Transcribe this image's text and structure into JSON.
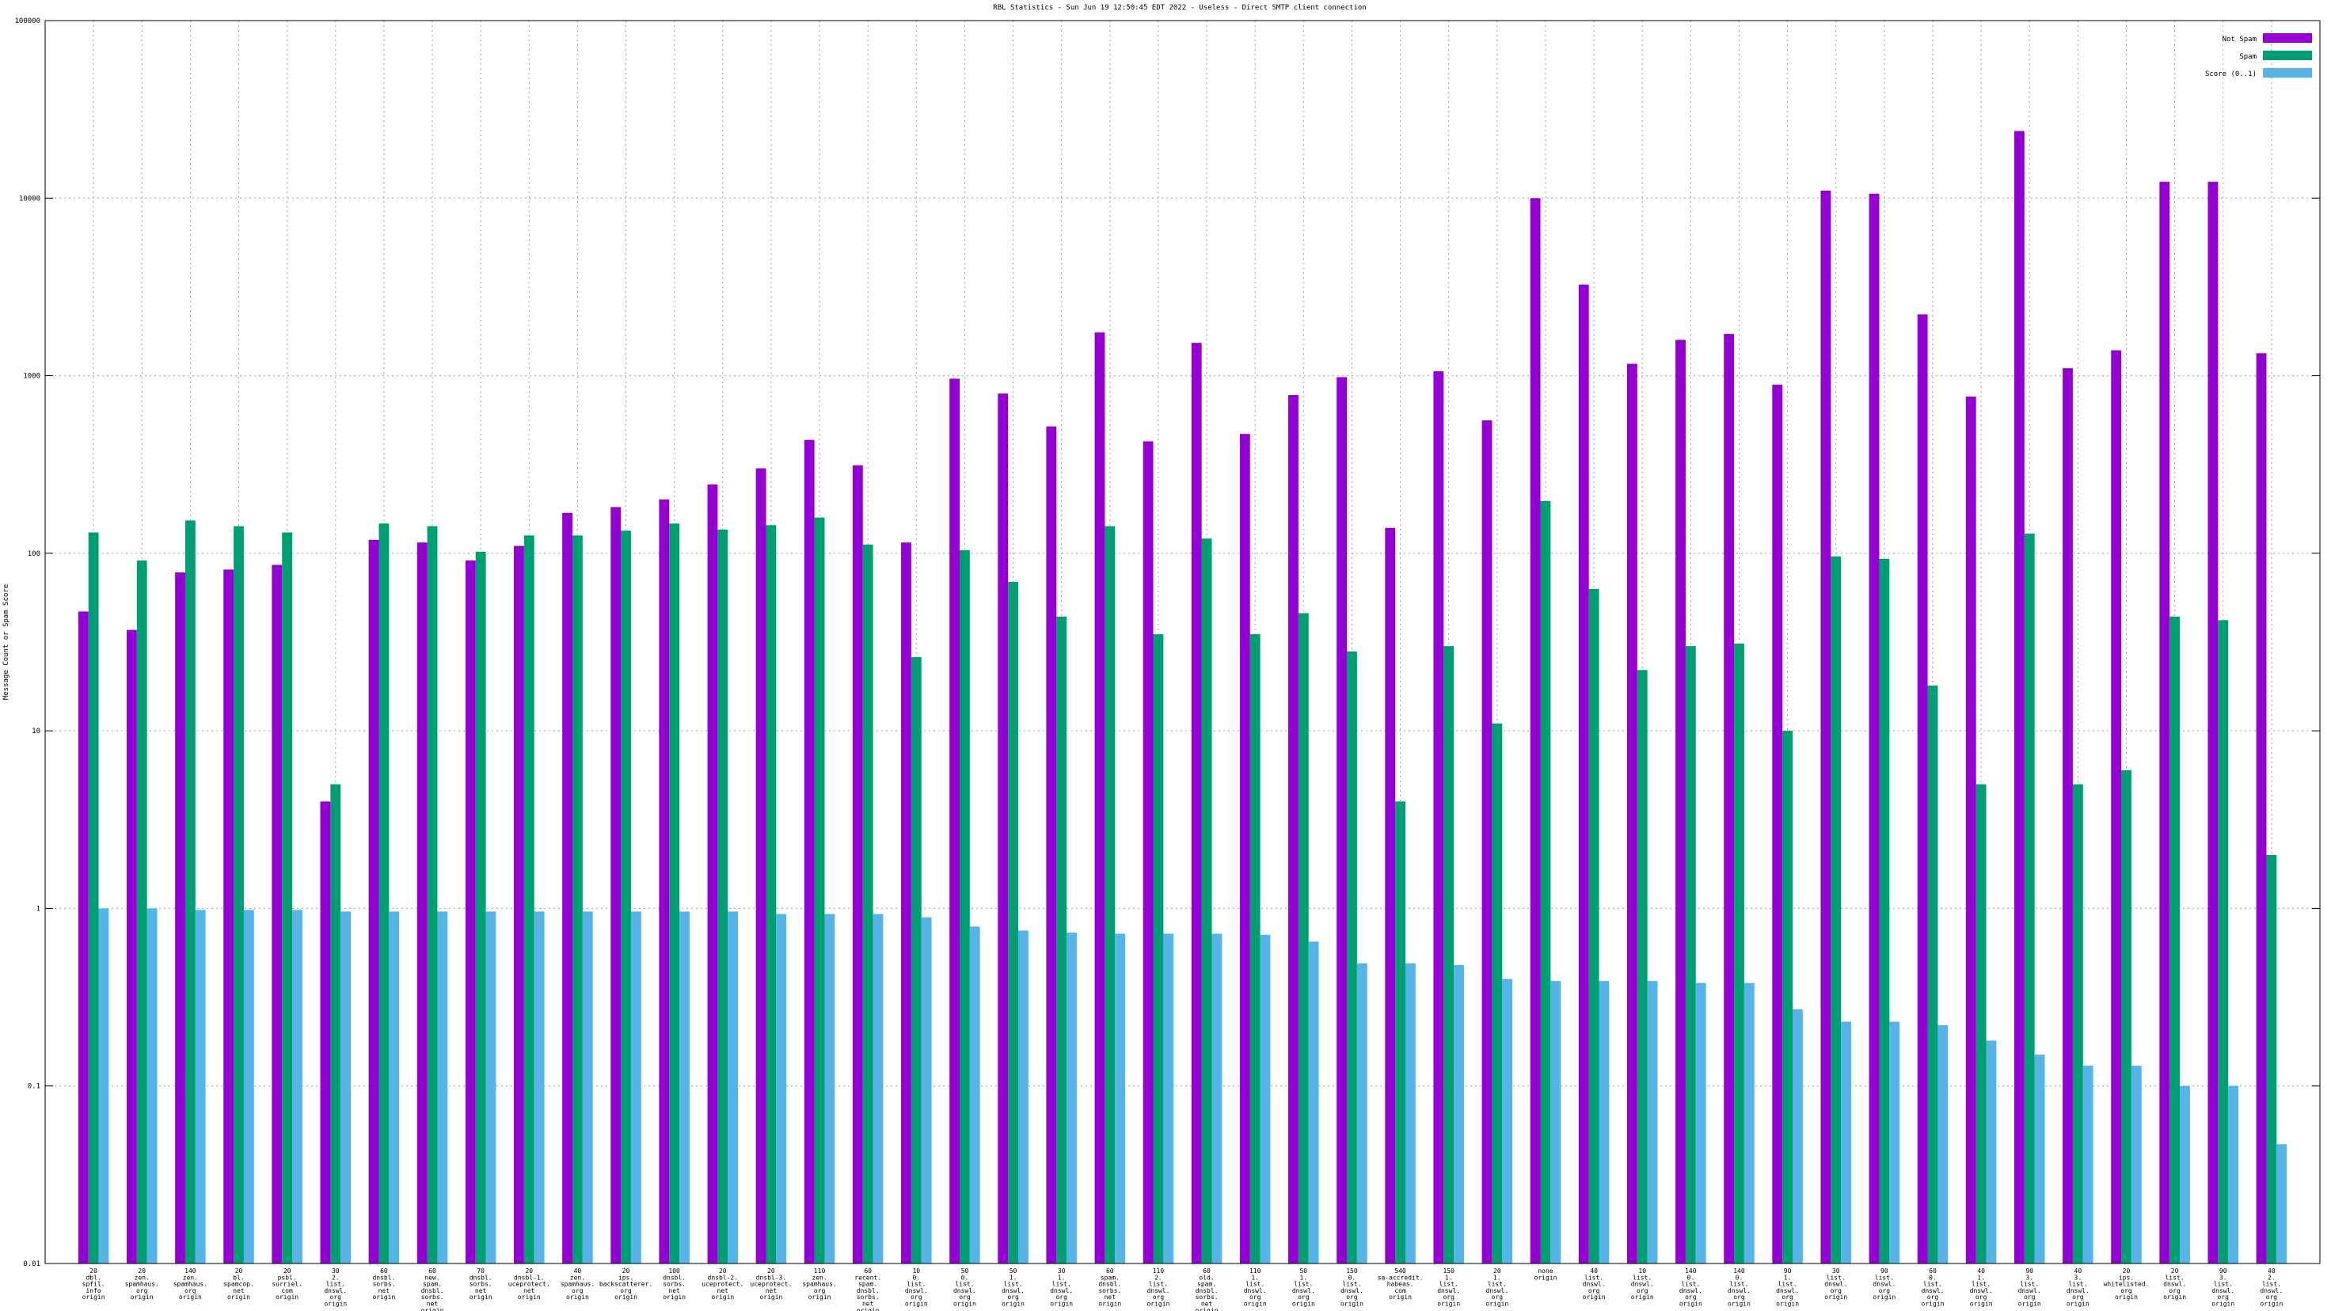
{
  "chart_data": {
    "type": "bar",
    "title": "RBL Statistics - Sun Jun 19 12:50:45 EDT 2022 - Useless - Direct SMTP client connection",
    "y_label": "Message Count or Spam Score",
    "log_scale": true,
    "grid": true,
    "legend_position": "top-right",
    "ylim": [
      0.01,
      100000
    ],
    "yticks": [
      0.01,
      0.1,
      1,
      10,
      100,
      1000,
      10000,
      100000
    ],
    "categories": [
      [
        "20",
        "dbl.",
        "spfil.",
        "info",
        "origin"
      ],
      [
        "20",
        "zen.",
        "spamhaus.",
        "org",
        "origin"
      ],
      [
        "140",
        "zen.",
        "spamhaus.",
        "org",
        "origin"
      ],
      [
        "20",
        "bl.",
        "spamcop.",
        "net",
        "origin"
      ],
      [
        "20",
        "psbl.",
        "surriel.",
        "com",
        "origin"
      ],
      [
        "30",
        "2.",
        "list.",
        "dnswl.",
        "org",
        "origin"
      ],
      [
        "60",
        "dnsbl.",
        "sorbs.",
        "net",
        "origin"
      ],
      [
        "60",
        "new.",
        "spam.",
        "dnsbl.",
        "sorbs.",
        "net",
        "origin"
      ],
      [
        "70",
        "dnsbl.",
        "sorbs.",
        "net",
        "origin"
      ],
      [
        "20",
        "dnsbl-1.",
        "uceprotect.",
        "net",
        "origin"
      ],
      [
        "40",
        "zen.",
        "spamhaus.",
        "org",
        "origin"
      ],
      [
        "20",
        "ips.",
        "backscatterer.",
        "org",
        "origin"
      ],
      [
        "100",
        "dnsbl.",
        "sorbs.",
        "net",
        "origin"
      ],
      [
        "20",
        "dnsbl-2.",
        "uceprotect.",
        "net",
        "origin"
      ],
      [
        "20",
        "dnsbl-3.",
        "uceprotect.",
        "net",
        "origin"
      ],
      [
        "110",
        "zen.",
        "spamhaus.",
        "org",
        "origin"
      ],
      [
        "60",
        "recent.",
        "spam.",
        "dnsbl.",
        "sorbs.",
        "net",
        "origin"
      ],
      [
        "10",
        "0.",
        "list.",
        "dnswl.",
        "org",
        "origin"
      ],
      [
        "50",
        "0.",
        "list.",
        "dnswl.",
        "org",
        "origin"
      ],
      [
        "50",
        "1.",
        "list.",
        "dnswl.",
        "org",
        "origin"
      ],
      [
        "30",
        "1.",
        "list.",
        "dnswl.",
        "org",
        "origin"
      ],
      [
        "60",
        "spam.",
        "dnsbl.",
        "sorbs.",
        "net",
        "origin"
      ],
      [
        "110",
        "2.",
        "list.",
        "dnswl.",
        "org",
        "origin"
      ],
      [
        "60",
        "old.",
        "spam.",
        "dnsbl.",
        "sorbs.",
        "net",
        "origin"
      ],
      [
        "110",
        "1.",
        "list.",
        "dnswl.",
        "org",
        "origin"
      ],
      [
        "50",
        "1.",
        "list.",
        "dnswl.",
        "org",
        "origin"
      ],
      [
        "150",
        "0.",
        "list.",
        "dnswl.",
        "org",
        "origin"
      ],
      [
        "540",
        "sa-accredit.",
        "habeas.",
        "com",
        "origin"
      ],
      [
        "150",
        "1.",
        "list.",
        "dnswl.",
        "org",
        "origin"
      ],
      [
        "20",
        "1.",
        "list.",
        "dnswl.",
        "org",
        "origin"
      ],
      [
        "none",
        "origin"
      ],
      [
        "40",
        "list.",
        "dnswl.",
        "org",
        "origin"
      ],
      [
        "10",
        "list.",
        "dnswl.",
        "org",
        "origin"
      ],
      [
        "140",
        "0.",
        "list.",
        "dnswl.",
        "org",
        "origin"
      ],
      [
        "140",
        "0.",
        "list.",
        "dnswl.",
        "org",
        "origin"
      ],
      [
        "90",
        "1.",
        "list.",
        "dnswl.",
        "org",
        "origin"
      ],
      [
        "30",
        "list.",
        "dnswl.",
        "org",
        "origin"
      ],
      [
        "90",
        "list.",
        "dnswl.",
        "org",
        "origin"
      ],
      [
        "60",
        "0.",
        "list.",
        "dnswl.",
        "org",
        "origin"
      ],
      [
        "40",
        "1.",
        "list.",
        "dnswl.",
        "org",
        "origin"
      ],
      [
        "90",
        "3.",
        "list.",
        "dnswl.",
        "org",
        "origin"
      ],
      [
        "40",
        "3.",
        "list.",
        "dnswl.",
        "org",
        "origin"
      ],
      [
        "20",
        "ips.",
        "whitelisted.",
        "org",
        "origin"
      ],
      [
        "20",
        "list.",
        "dnswl.",
        "org",
        "origin"
      ],
      [
        "90",
        "3.",
        "list.",
        "dnswl.",
        "org",
        "origin"
      ],
      [
        "40",
        "2.",
        "list.",
        "dnswl.",
        "org",
        "origin"
      ]
    ],
    "series": [
      {
        "name": "Not Spam",
        "color": "#9400d3",
        "values": [
          47,
          37,
          78,
          81,
          86,
          4,
          119,
          115,
          91,
          110,
          169,
          182,
          201,
          244,
          301,
          435,
          313,
          115,
          962,
          793,
          518,
          1754,
          427,
          1530,
          470,
          778,
          981,
          139,
          1059,
          560,
          10000,
          3258,
          1167,
          1592,
          1718,
          891,
          11020,
          10590,
          2212,
          763,
          23880,
          1102,
          1390,
          12360,
          12360,
          1337
        ]
      },
      {
        "name": "Spam",
        "color": "#009e73",
        "values": [
          131,
          91,
          153,
          142,
          131,
          5,
          147,
          142,
          102,
          126,
          126,
          134,
          147,
          136,
          144,
          159,
          112,
          26,
          104,
          69,
          44,
          142,
          35,
          121,
          35,
          46,
          28,
          4,
          30,
          11,
          197,
          63,
          22,
          30,
          31,
          10,
          96,
          93,
          18,
          5,
          129,
          5,
          6,
          44,
          42,
          2
        ]
      },
      {
        "name": "Score (0..1)",
        "color": "#56b4e9",
        "values": [
          1.0,
          1.0,
          0.98,
          0.98,
          0.98,
          0.96,
          0.96,
          0.96,
          0.96,
          0.96,
          0.96,
          0.96,
          0.96,
          0.96,
          0.93,
          0.93,
          0.93,
          0.89,
          0.79,
          0.75,
          0.73,
          0.72,
          0.72,
          0.72,
          0.71,
          0.65,
          0.49,
          0.49,
          0.48,
          0.4,
          0.39,
          0.39,
          0.39,
          0.38,
          0.38,
          0.27,
          0.23,
          0.23,
          0.22,
          0.18,
          0.15,
          0.13,
          0.13,
          0.1,
          0.1,
          0.047
        ]
      }
    ]
  }
}
